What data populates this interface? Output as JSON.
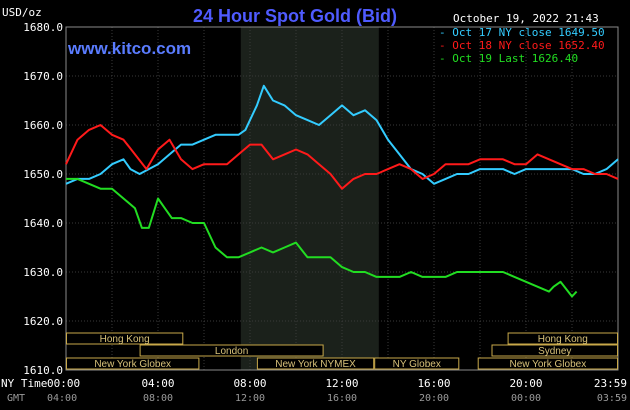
{
  "chart_data": {
    "type": "line",
    "title": "24 Hour Spot Gold (Bid)",
    "watermark": "www.kitco.com",
    "timestamp": "October 19, 2022 21:43",
    "ylabel": "USD/oz",
    "ylim": [
      1610,
      1680
    ],
    "grid": true,
    "y_ticks": [
      "1680.0",
      "1670.0",
      "1660.0",
      "1650.0",
      "1640.0",
      "1630.0",
      "1620.0",
      "1610.0"
    ],
    "x_ticks_ny": [
      "00:00",
      "04:00",
      "08:00",
      "12:00",
      "16:00",
      "20:00",
      "23:59"
    ],
    "x_ticks_gmt": [
      "04:00",
      "08:00",
      "12:00",
      "16:00",
      "20:00",
      "00:00",
      "03:59"
    ],
    "x_row_label_ny": "NY Time",
    "x_row_label_gmt": "GMT",
    "highlight_hours": [
      7.6,
      13.6
    ],
    "legend": [
      {
        "text": "Oct 17 NY close 1649.50",
        "color": "#33ccff"
      },
      {
        "text": "Oct 18 NY close 1652.40",
        "color": "#ff1a1a"
      },
      {
        "text": "Oct 19 Last 1626.40",
        "color": "#22dd22"
      }
    ],
    "series": [
      {
        "name": "Oct 17",
        "color": "#33ccff",
        "x": [
          0,
          0.5,
          1,
          1.5,
          2,
          2.5,
          2.8,
          3.2,
          3.6,
          4,
          4.5,
          5,
          5.5,
          6,
          6.5,
          7,
          7.5,
          7.8,
          8,
          8.3,
          8.6,
          9,
          9.5,
          10,
          10.5,
          11,
          11.5,
          12,
          12.5,
          13,
          13.5,
          14,
          14.5,
          15,
          15.5,
          16,
          16.5,
          17,
          17.5,
          18,
          18.5,
          19,
          19.5,
          20,
          20.5,
          21,
          21.5,
          22,
          22.5,
          23,
          23.5,
          24
        ],
        "y": [
          1648,
          1649,
          1649,
          1650,
          1652,
          1653,
          1651,
          1650,
          1651,
          1652,
          1654,
          1656,
          1656,
          1657,
          1658,
          1658,
          1658,
          1659,
          1661,
          1664,
          1668,
          1665,
          1664,
          1662,
          1661,
          1660,
          1662,
          1664,
          1662,
          1663,
          1661,
          1657,
          1654,
          1651,
          1650,
          1648,
          1649,
          1650,
          1650,
          1651,
          1651,
          1651,
          1650,
          1651,
          1651,
          1651,
          1651,
          1651,
          1650,
          1650,
          1651,
          1653
        ]
      },
      {
        "name": "Oct 18",
        "color": "#ff1a1a",
        "x": [
          0,
          0.5,
          1,
          1.5,
          2,
          2.5,
          3,
          3.5,
          4,
          4.5,
          5,
          5.5,
          6,
          6.5,
          7,
          7.5,
          8,
          8.5,
          9,
          9.5,
          10,
          10.5,
          11,
          11.5,
          12,
          12.5,
          13,
          13.5,
          14,
          14.5,
          15,
          15.5,
          16,
          16.5,
          17,
          17.5,
          18,
          18.5,
          19,
          19.5,
          20,
          20.5,
          21,
          21.5,
          22,
          22.5,
          23,
          23.5,
          24
        ],
        "y": [
          1652,
          1657,
          1659,
          1660,
          1658,
          1657,
          1654,
          1651,
          1655,
          1657,
          1653,
          1651,
          1652,
          1652,
          1652,
          1654,
          1656,
          1656,
          1653,
          1654,
          1655,
          1654,
          1652,
          1650,
          1647,
          1649,
          1650,
          1650,
          1651,
          1652,
          1651,
          1649,
          1650,
          1652,
          1652,
          1652,
          1653,
          1653,
          1653,
          1652,
          1652,
          1654,
          1653,
          1652,
          1651,
          1651,
          1650,
          1650,
          1649
        ]
      },
      {
        "name": "Oct 19",
        "color": "#22dd22",
        "x": [
          0,
          0.5,
          1,
          1.5,
          2,
          2.5,
          3,
          3.3,
          3.6,
          4,
          4.3,
          4.6,
          5,
          5.5,
          6,
          6.5,
          7,
          7.5,
          8,
          8.5,
          9,
          9.5,
          10,
          10.5,
          11,
          11.5,
          12,
          12.5,
          13,
          13.5,
          14,
          14.5,
          15,
          15.5,
          16,
          16.5,
          17,
          17.5,
          18,
          18.5,
          19,
          19.5,
          20,
          20.5,
          21,
          21.2,
          21.5,
          22,
          22.2
        ],
        "y": [
          1649,
          1649,
          1648,
          1647,
          1647,
          1645,
          1643,
          1639,
          1639,
          1645,
          1643,
          1641,
          1641,
          1640,
          1640,
          1635,
          1633,
          1633,
          1634,
          1635,
          1634,
          1635,
          1636,
          1633,
          1633,
          1633,
          1631,
          1630,
          1630,
          1629,
          1629,
          1629,
          1630,
          1629,
          1629,
          1629,
          1630,
          1630,
          1630,
          1630,
          1630,
          1629,
          1628,
          1627,
          1626,
          1627,
          1628,
          1625,
          1626
        ]
      }
    ],
    "sessions": [
      {
        "label": "Hong Kong",
        "start": 0,
        "end": 5.1
      },
      {
        "label": "London",
        "start": 3.2,
        "end": 11.2
      },
      {
        "label": "New York Globex",
        "start": 0,
        "end": 5.8
      },
      {
        "label": "New York NYMEX",
        "start": 8.3,
        "end": 13.4
      },
      {
        "label": "NY Globex",
        "start": 13.4,
        "end": 17.1
      },
      {
        "label": "Hong Kong",
        "start": 19.2,
        "end": 24
      },
      {
        "label": "Sydney",
        "start": 18.5,
        "end": 24
      },
      {
        "label": "New York Globex",
        "start": 17.9,
        "end": 24
      }
    ]
  }
}
